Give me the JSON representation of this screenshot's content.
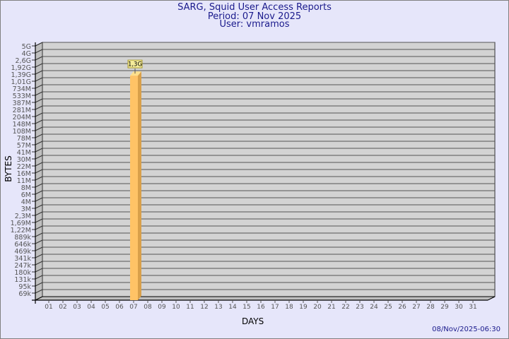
{
  "chart_data": {
    "type": "bar",
    "title": "SARG, Squid User Access Reports",
    "subtitle": [
      "Period: 07 Nov 2025",
      "User: vmramos"
    ],
    "xlabel": "DAYS",
    "ylabel": "BYTES",
    "categories": [
      "01",
      "02",
      "03",
      "04",
      "05",
      "06",
      "07",
      "08",
      "09",
      "10",
      "11",
      "12",
      "13",
      "14",
      "15",
      "16",
      "17",
      "18",
      "19",
      "20",
      "21",
      "22",
      "23",
      "24",
      "25",
      "26",
      "27",
      "28",
      "29",
      "30",
      "31"
    ],
    "series": [
      {
        "values": [
          null,
          null,
          null,
          null,
          null,
          null,
          1300000000,
          null,
          null,
          null,
          null,
          null,
          null,
          null,
          null,
          null,
          null,
          null,
          null,
          null,
          null,
          null,
          null,
          null,
          null,
          null,
          null,
          null,
          null,
          null,
          null
        ]
      }
    ],
    "data_labels": {
      "07": "1,3G"
    },
    "y_ticks": [
      "5G",
      "4G",
      "2,6G",
      "1,92G",
      "1,39G",
      "1,01G",
      "734M",
      "533M",
      "387M",
      "281M",
      "204M",
      "148M",
      "108M",
      "78M",
      "57M",
      "41M",
      "30M",
      "22M",
      "16M",
      "11M",
      "8M",
      "6M",
      "4M",
      "3M",
      "2,3M",
      "1,69M",
      "1,22M",
      "889k",
      "646k",
      "469k",
      "341k",
      "247k",
      "180k",
      "131k",
      "95k",
      "69k"
    ],
    "y_tick_values": [
      5000000000.0,
      4000000000.0,
      2600000000.0,
      1920000000.0,
      1390000000.0,
      1010000000.0,
      734000000.0,
      533000000.0,
      387000000.0,
      281000000.0,
      204000000.0,
      148000000.0,
      108000000.0,
      78000000.0,
      57000000.0,
      41000000.0,
      30000000.0,
      22000000.0,
      16000000.0,
      11000000.0,
      8000000.0,
      6000000.0,
      4000000.0,
      3000000.0,
      2300000.0,
      1690000.0,
      1220000.0,
      889000.0,
      646000.0,
      469000.0,
      341000.0,
      247000.0,
      180000.0,
      131000.0,
      95000.0,
      69000.0
    ],
    "y_scale": "log",
    "grid": true,
    "legend": "none",
    "colors": {
      "bar": "#FFC366",
      "bar_side": "#D9A04A",
      "bar_top": "#FFE08C",
      "wall": "#D3D3D3",
      "side_wall": "#BFBFBF",
      "title": "#1A1A8C",
      "background": "#E6E6FA"
    }
  },
  "footer": {
    "timestamp": "08/Nov/2025-06:30"
  }
}
